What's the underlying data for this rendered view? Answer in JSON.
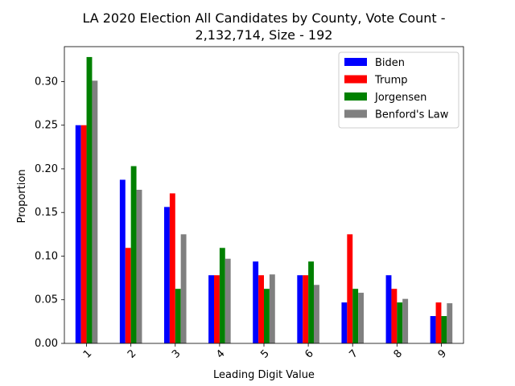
{
  "chart_data": {
    "type": "bar",
    "title_line1": "LA 2020 Election All Candidates by County, Vote Count -",
    "title_line2": "2,132,714, Size - 192",
    "xlabel": "Leading Digit Value",
    "ylabel": "Proportion",
    "ylim": [
      0,
      0.34
    ],
    "yticks": [
      "0.00",
      "0.05",
      "0.10",
      "0.15",
      "0.20",
      "0.25",
      "0.30"
    ],
    "categories": [
      "1",
      "2",
      "3",
      "4",
      "5",
      "6",
      "7",
      "8",
      "9"
    ],
    "legend_position": "top-right",
    "series": [
      {
        "name": "Biden",
        "color": "#0000ff",
        "values": [
          0.25,
          0.1875,
          0.1563,
          0.0781,
          0.0938,
          0.0781,
          0.0469,
          0.0781,
          0.0313
        ]
      },
      {
        "name": "Trump",
        "color": "#ff0000",
        "values": [
          0.25,
          0.1094,
          0.1719,
          0.0781,
          0.0781,
          0.0781,
          0.125,
          0.0625,
          0.0469
        ]
      },
      {
        "name": "Jorgensen",
        "color": "#008000",
        "values": [
          0.3281,
          0.2031,
          0.0625,
          0.1094,
          0.0625,
          0.0938,
          0.0625,
          0.0469,
          0.0313
        ]
      },
      {
        "name": "Benford's Law",
        "color": "#808080",
        "values": [
          0.301,
          0.176,
          0.125,
          0.097,
          0.079,
          0.067,
          0.058,
          0.051,
          0.046
        ]
      }
    ]
  }
}
